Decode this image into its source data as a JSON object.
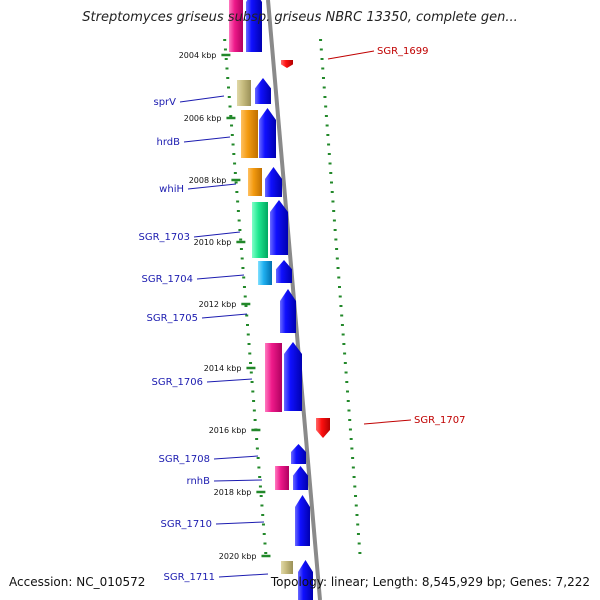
{
  "title": "Streptomyces griseus subsp. griseus NBRC 13350, complete gen...",
  "footer": {
    "accession": "Accession: NC_010572",
    "topology": "Topology: linear; Length: 8,545,929 bp; Genes: 7,222"
  },
  "colors": {
    "forward_strand": "#0000ee",
    "reverse_strand": "#ee0000",
    "label_blue": "#1c1cb0",
    "label_red": "#c00000",
    "ticks": "#22882a",
    "axis": "#8a8a8a"
  },
  "kbp_labels": [
    "2004 kbp",
    "2006 kbp",
    "2008 kbp",
    "2010 kbp",
    "2012 kbp",
    "2014 kbp",
    "2016 kbp",
    "2018 kbp",
    "2020 kbp"
  ],
  "genes_forward": [
    "sprV",
    "hrdB",
    "whiH",
    "SGR_1703",
    "SGR_1704",
    "SGR_1705",
    "SGR_1706",
    "SGR_1708",
    "rnhB",
    "SGR_1710",
    "SGR_1711"
  ],
  "genes_reverse": [
    "SGR_1699",
    "SGR_1707"
  ]
}
